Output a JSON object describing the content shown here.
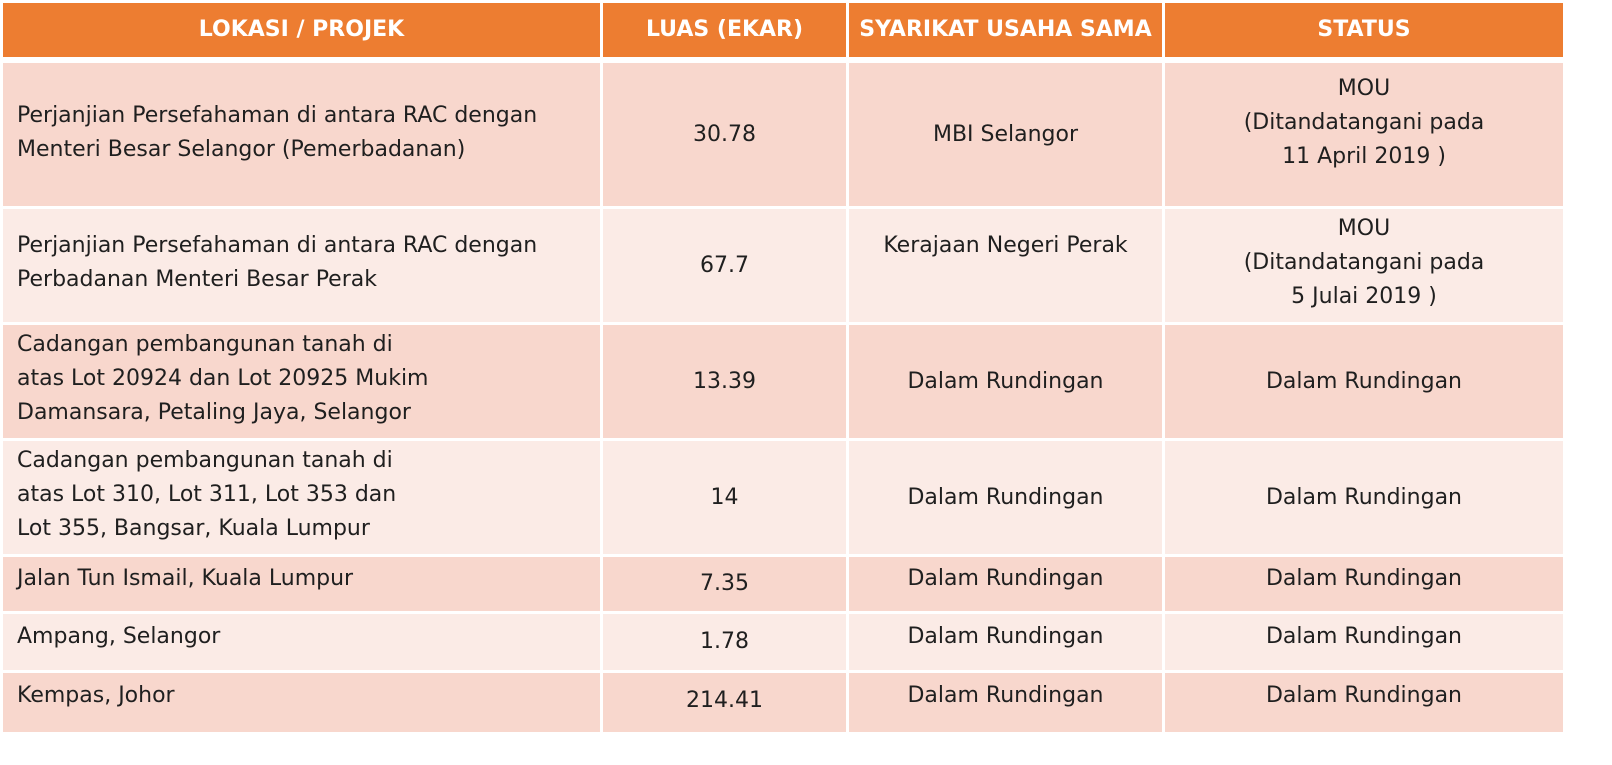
{
  "table": {
    "headers": {
      "location": "LOKASI / PROJEK",
      "area": "LUAS (EKAR)",
      "jv": "SYARIKAT USAHA SAMA",
      "status": "STATUS"
    },
    "rows": [
      {
        "location_lines": [
          "Perjanjian Persefahaman di antara RAC dengan",
          "Menteri Besar Selangor (Pemerbadanan)"
        ],
        "area": "30.78",
        "jv": "MBI Selangor",
        "status_lines": [
          "MOU",
          "(Ditandatangani pada",
          "11 April 2019 )"
        ]
      },
      {
        "location_lines": [
          "Perjanjian Persefahaman di antara RAC dengan",
          "Perbadanan Menteri Besar Perak"
        ],
        "area": "67.7",
        "jv": "Kerajaan Negeri Perak",
        "status_lines": [
          "MOU",
          "(Ditandatangani pada",
          "5 Julai 2019 )"
        ]
      },
      {
        "location_lines": [
          "Cadangan pembangunan tanah di",
          "atas Lot 20924 dan Lot 20925 Mukim",
          "Damansara, Petaling Jaya, Selangor"
        ],
        "area": "13.39",
        "jv": "Dalam Rundingan",
        "status_lines": [
          "Dalam Rundingan"
        ]
      },
      {
        "location_lines": [
          "Cadangan pembangunan tanah di",
          "atas Lot 310, Lot 311, Lot 353 dan",
          "Lot 355, Bangsar, Kuala Lumpur"
        ],
        "area": "14",
        "jv": "Dalam Rundingan",
        "status_lines": [
          "Dalam Rundingan"
        ]
      },
      {
        "location_lines": [
          "Jalan Tun Ismail, Kuala Lumpur"
        ],
        "area": "7.35",
        "jv": "Dalam Rundingan",
        "status_lines": [
          "Dalam Rundingan"
        ]
      },
      {
        "location_lines": [
          "Ampang, Selangor"
        ],
        "area": "1.78",
        "jv": "Dalam Rundingan",
        "status_lines": [
          "Dalam Rundingan"
        ]
      },
      {
        "location_lines": [
          "Kempas, Johor"
        ],
        "area": "214.41",
        "jv": "Dalam Rundingan",
        "status_lines": [
          "Dalam Rundingan"
        ]
      }
    ]
  },
  "colors": {
    "header": "#ed7d31",
    "row_odd": "#f8d7cd",
    "row_even": "#fbebe6"
  }
}
